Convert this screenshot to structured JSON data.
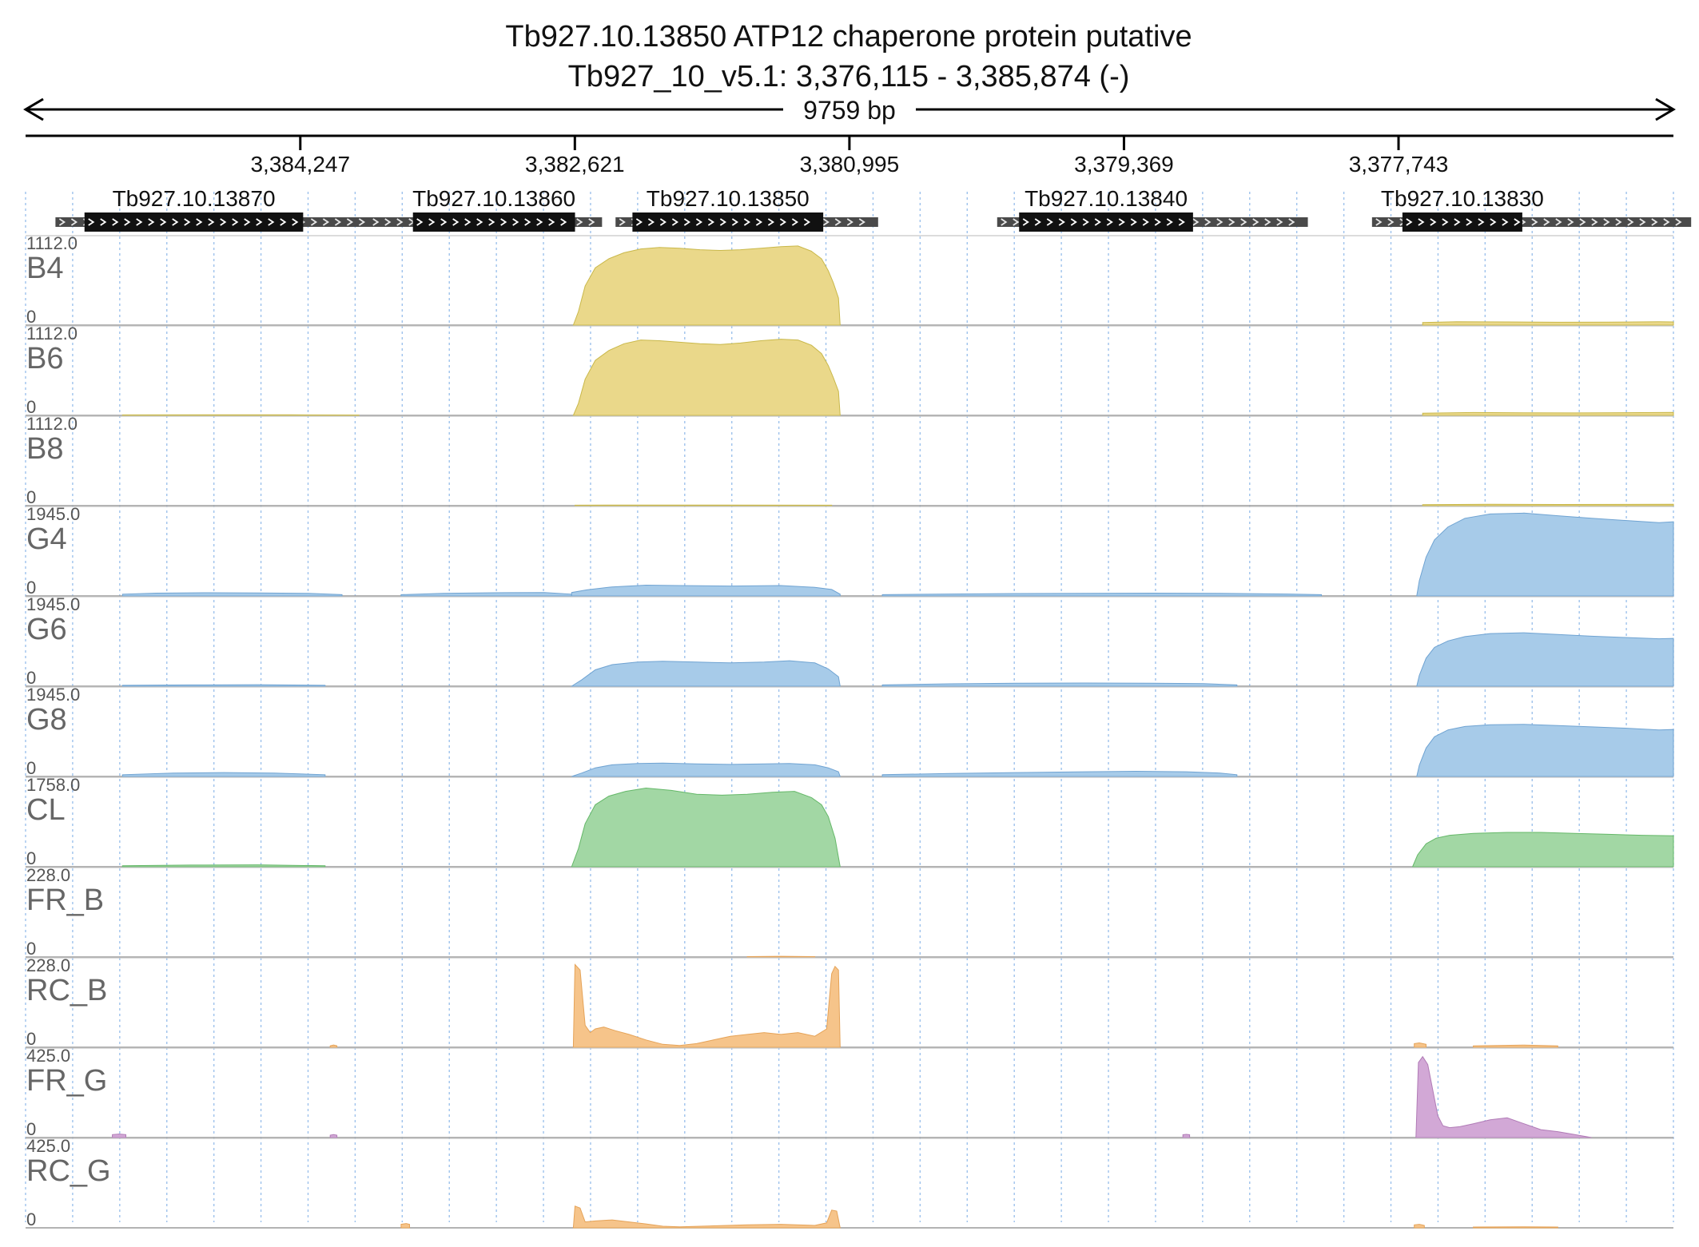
{
  "chart_data": {
    "type": "area",
    "title": "Tb927.10.13850  ATP12 chaperone protein  putative",
    "subtitle": "Tb927_10_v5.1: 3,376,115 - 3,385,874 (-)",
    "span_label": "9759 bp",
    "xlim": [
      3385874,
      3376115
    ],
    "x_ticks": [
      {
        "value": 3384247,
        "label": "3,384,247"
      },
      {
        "value": 3382621,
        "label": "3,382,621"
      },
      {
        "value": 3380995,
        "label": "3,380,995"
      },
      {
        "value": 3379369,
        "label": "3,379,369"
      },
      {
        "value": 3377743,
        "label": "3,377,743"
      }
    ],
    "grid": true,
    "genes": [
      {
        "id": "Tb927.10.13870",
        "start": 3385697,
        "end": 3383710,
        "cds_start": 3385525,
        "cds_end": 3384230
      },
      {
        "id": "Tb927.10.13860",
        "start": 3383840,
        "end": 3382460,
        "cds_start": 3383580,
        "cds_end": 3382620
      },
      {
        "id": "Tb927.10.13850",
        "start": 3382380,
        "end": 3380825,
        "cds_start": 3382280,
        "cds_end": 3381150
      },
      {
        "id": "Tb927.10.13840",
        "start": 3380120,
        "end": 3378280,
        "cds_start": 3379990,
        "cds_end": 3378960
      },
      {
        "id": "Tb927.10.13830",
        "start": 3377900,
        "end": 3376010,
        "cds_start": 3377720,
        "cds_end": 3377010
      }
    ],
    "tracks": [
      {
        "name": "B4",
        "max_label": "1112.0",
        "min_label": "0",
        "ymax": 1112,
        "color": "#ead88a",
        "edge": "#c9b84a",
        "segments": [
          {
            "x": [
              3382630,
              3382600,
              3382560,
              3382500,
              3382420,
              3382330,
              3382230,
              3382120,
              3382000,
              3381880,
              3381760,
              3381640,
              3381520,
              3381400,
              3381300,
              3381220,
              3381160,
              3381120,
              3381090,
              3381060,
              3381050
            ],
            "y": [
              0,
              180,
              520,
              760,
              880,
              960,
              1010,
              1030,
              1020,
              1000,
              990,
              1000,
              1020,
              1040,
              1050,
              980,
              880,
              720,
              560,
              360,
              0
            ]
          },
          {
            "x": [
              3377600,
              3377400,
              3377100,
              3376800,
              3376500,
              3376200,
              3376115
            ],
            "y": [
              35,
              45,
              42,
              38,
              40,
              44,
              42
            ]
          }
        ]
      },
      {
        "name": "B6",
        "max_label": "1112.0",
        "min_label": "0",
        "ymax": 1112,
        "color": "#ead88a",
        "edge": "#c9b84a",
        "segments": [
          {
            "x": [
              3385300,
              3384800,
              3384300,
              3383900
            ],
            "y": [
              6,
              8,
              7,
              5
            ]
          },
          {
            "x": [
              3382630,
              3382600,
              3382560,
              3382500,
              3382420,
              3382330,
              3382230,
              3382120,
              3382000,
              3381880,
              3381760,
              3381640,
              3381520,
              3381400,
              3381300,
              3381220,
              3381160,
              3381120,
              3381090,
              3381060,
              3381050
            ],
            "y": [
              0,
              160,
              480,
              730,
              860,
              950,
              1000,
              990,
              970,
              950,
              940,
              960,
              990,
              1010,
              1000,
              930,
              820,
              660,
              500,
              320,
              0
            ]
          },
          {
            "x": [
              3377600,
              3377300,
              3377000,
              3376700,
              3376400,
              3376115
            ],
            "y": [
              30,
              38,
              35,
              33,
              36,
              40
            ]
          }
        ]
      },
      {
        "name": "B8",
        "max_label": "1112.0",
        "min_label": "0",
        "ymax": 1112,
        "color": "#ead88a",
        "edge": "#c9b84a",
        "segments": [
          {
            "x": [
              3382620,
              3382300,
              3381800,
              3381100
            ],
            "y": [
              6,
              8,
              8,
              6
            ]
          },
          {
            "x": [
              3377600,
              3377200,
              3376800,
              3376400,
              3376115
            ],
            "y": [
              14,
              18,
              16,
              17,
              18
            ]
          }
        ]
      },
      {
        "name": "G4",
        "max_label": "1945.0",
        "min_label": "0",
        "ymax": 1945,
        "color": "#a7cbe9",
        "edge": "#6fa3d2",
        "segments": [
          {
            "x": [
              3385300,
              3385100,
              3384800,
              3384500,
              3384200,
              3384000
            ],
            "y": [
              40,
              65,
              75,
              70,
              60,
              30
            ]
          },
          {
            "x": [
              3383650,
              3383400,
              3383100,
              3382800,
              3382640
            ],
            "y": [
              30,
              60,
              75,
              80,
              40
            ]
          },
          {
            "x": [
              3382640,
              3382550,
              3382400,
              3382200,
              3382000,
              3381700,
              3381400,
              3381200,
              3381100,
              3381050
            ],
            "y": [
              80,
              140,
              210,
              250,
              240,
              230,
              240,
              200,
              150,
              40
            ]
          },
          {
            "x": [
              3380800,
              3380400,
              3380000,
              3379600,
              3379200,
              3378800,
              3378400,
              3378200
            ],
            "y": [
              30,
              45,
              55,
              60,
              65,
              60,
              45,
              30
            ]
          },
          {
            "x": [
              3377635,
              3377620,
              3377580,
              3377530,
              3377450,
              3377350,
              3377200,
              3377000,
              3376800,
              3376600,
              3376400,
              3376200,
              3376115
            ],
            "y": [
              0,
              350,
              900,
              1300,
              1600,
              1800,
              1900,
              1920,
              1860,
              1800,
              1750,
              1700,
              1720
            ]
          }
        ]
      },
      {
        "name": "G6",
        "max_label": "1945.0",
        "min_label": "0",
        "ymax": 1945,
        "color": "#a7cbe9",
        "edge": "#6fa3d2",
        "segments": [
          {
            "x": [
              3385300,
              3384900,
              3384500,
              3384100
            ],
            "y": [
              20,
              30,
              35,
              20
            ]
          },
          {
            "x": [
              3382640,
              3382580,
              3382500,
              3382400,
              3382250,
              3382100,
              3381900,
              3381700,
              3381500,
              3381350,
              3381200,
              3381120,
              3381060,
              3381050
            ],
            "y": [
              0,
              150,
              380,
              500,
              560,
              580,
              560,
              540,
              560,
              590,
              540,
              400,
              220,
              0
            ]
          },
          {
            "x": [
              3380800,
              3380400,
              3380000,
              3379600,
              3379200,
              3378900,
              3378700
            ],
            "y": [
              30,
              55,
              70,
              75,
              70,
              60,
              30
            ]
          },
          {
            "x": [
              3377635,
              3377620,
              3377580,
              3377530,
              3377450,
              3377350,
              3377200,
              3377000,
              3376800,
              3376600,
              3376400,
              3376200,
              3376115
            ],
            "y": [
              0,
              250,
              650,
              900,
              1050,
              1150,
              1220,
              1240,
              1200,
              1160,
              1130,
              1100,
              1110
            ]
          }
        ]
      },
      {
        "name": "G8",
        "max_label": "1945.0",
        "min_label": "0",
        "ymax": 1945,
        "color": "#a7cbe9",
        "edge": "#6fa3d2",
        "segments": [
          {
            "x": [
              3385300,
              3385000,
              3384700,
              3384400,
              3384100
            ],
            "y": [
              40,
              80,
              90,
              80,
              40
            ]
          },
          {
            "x": [
              3382640,
              3382580,
              3382500,
              3382400,
              3382250,
              3382100,
              3381900,
              3381700,
              3381500,
              3381350,
              3381200,
              3381120,
              3381060,
              3381050
            ],
            "y": [
              0,
              80,
              200,
              270,
              300,
              310,
              290,
              280,
              290,
              300,
              270,
              200,
              110,
              0
            ]
          },
          {
            "x": [
              3380800,
              3380400,
              3380000,
              3379600,
              3379300,
              3379000,
              3378800,
              3378700
            ],
            "y": [
              40,
              70,
              90,
              110,
              120,
              110,
              80,
              40
            ]
          },
          {
            "x": [
              3377635,
              3377620,
              3377580,
              3377530,
              3377450,
              3377350,
              3377200,
              3377000,
              3376800,
              3376600,
              3376400,
              3376200,
              3376115
            ],
            "y": [
              0,
              260,
              660,
              920,
              1080,
              1160,
              1200,
              1210,
              1180,
              1150,
              1120,
              1080,
              1090
            ]
          }
        ]
      },
      {
        "name": "CL",
        "max_label": "1758.0",
        "min_label": "0",
        "ymax": 1758,
        "color": "#a2d7a4",
        "edge": "#65b869",
        "segments": [
          {
            "x": [
              3385300,
              3384900,
              3384500,
              3384100
            ],
            "y": [
              20,
              35,
              40,
              20
            ]
          },
          {
            "x": [
              3382640,
              3382600,
              3382560,
              3382500,
              3382420,
              3382320,
              3382200,
              3382050,
              3381900,
              3381750,
              3381600,
              3381450,
              3381320,
              3381220,
              3381160,
              3381120,
              3381080,
              3381050
            ],
            "y": [
              0,
              380,
              900,
              1300,
              1480,
              1580,
              1650,
              1600,
              1520,
              1500,
              1520,
              1560,
              1580,
              1450,
              1300,
              1050,
              600,
              0
            ]
          },
          {
            "x": [
              3377660,
              3377630,
              3377580,
              3377520,
              3377440,
              3377300,
              3377100,
              3376900,
              3376700,
              3376500,
              3376300,
              3376115
            ],
            "y": [
              0,
              250,
              480,
              600,
              660,
              700,
              720,
              720,
              700,
              680,
              660,
              650
            ]
          }
        ]
      },
      {
        "name": "FR_B",
        "max_label": "228.0",
        "min_label": "0",
        "ymax": 228,
        "color": "#f6c48a",
        "edge": "#e5a358",
        "segments": [
          {
            "x": [
              3381600,
              3381400,
              3381200
            ],
            "y": [
              1,
              2,
              1
            ]
          }
        ]
      },
      {
        "name": "RC_B",
        "max_label": "228.0",
        "min_label": "0",
        "ymax": 228,
        "color": "#f6c48a",
        "edge": "#e5a358",
        "segments": [
          {
            "x": [
              3384070,
              3384050,
              3384030
            ],
            "y": [
              4,
              6,
              4
            ]
          },
          {
            "x": [
              3382630,
              3382620,
              3382590,
              3382560,
              3382530,
              3382500,
              3382450,
              3382380,
              3382300,
              3382200,
              3382100,
              3382000,
              3381900,
              3381800,
              3381700,
              3381600,
              3381500,
              3381400,
              3381300,
              3381200,
              3381130,
              3381100,
              3381080,
              3381060,
              3381050
            ],
            "y": [
              0,
              225,
              210,
              60,
              40,
              50,
              55,
              45,
              35,
              20,
              8,
              5,
              10,
              20,
              30,
              35,
              40,
              35,
              40,
              30,
              50,
              200,
              220,
              210,
              0
            ]
          },
          {
            "x": [
              3377650,
              3377620,
              3377580
            ],
            "y": [
              10,
              12,
              8
            ]
          },
          {
            "x": [
              3377300,
              3377000,
              3376800
            ],
            "y": [
              4,
              6,
              4
            ]
          }
        ]
      },
      {
        "name": "FR_G",
        "max_label": "425.0",
        "min_label": "0",
        "ymax": 425,
        "color": "#d2a8d6",
        "edge": "#b07bb6",
        "segments": [
          {
            "x": [
              3385360,
              3385320,
              3385280
            ],
            "y": [
              15,
              18,
              15
            ]
          },
          {
            "x": [
              3384070,
              3384050,
              3384030
            ],
            "y": [
              12,
              15,
              12
            ]
          },
          {
            "x": [
              3379020,
              3379000,
              3378980
            ],
            "y": [
              14,
              16,
              14
            ]
          },
          {
            "x": [
              3377640,
              3377625,
              3377600,
              3377570,
              3377540,
              3377510,
              3377480,
              3377440,
              3377380,
              3377300,
              3377200,
              3377100,
              3377000,
              3376900,
              3376800,
              3376700,
              3376600
            ],
            "y": [
              0,
              380,
              410,
              370,
              240,
              110,
              60,
              50,
              55,
              70,
              90,
              100,
              70,
              40,
              30,
              15,
              0
            ]
          }
        ]
      },
      {
        "name": "RC_G",
        "max_label": "425.0",
        "min_label": "0",
        "ymax": 425,
        "color": "#f6c48a",
        "edge": "#e5a358",
        "segments": [
          {
            "x": [
              3383650,
              3383620,
              3383600
            ],
            "y": [
              18,
              22,
              18
            ]
          },
          {
            "x": [
              3382630,
              3382620,
              3382590,
              3382560,
              3382500,
              3382400,
              3382300,
              3382200,
              3382100,
              3382000,
              3381800,
              3381600,
              3381400,
              3381200,
              3381130,
              3381100,
              3381070,
              3381050
            ],
            "y": [
              0,
              110,
              100,
              30,
              35,
              40,
              30,
              20,
              8,
              5,
              10,
              15,
              18,
              12,
              25,
              90,
              85,
              0
            ]
          },
          {
            "x": [
              3377650,
              3377620,
              3377590
            ],
            "y": [
              15,
              18,
              12
            ]
          },
          {
            "x": [
              3377300,
              3377000,
              3376800
            ],
            "y": [
              4,
              5,
              4
            ]
          }
        ]
      }
    ]
  }
}
